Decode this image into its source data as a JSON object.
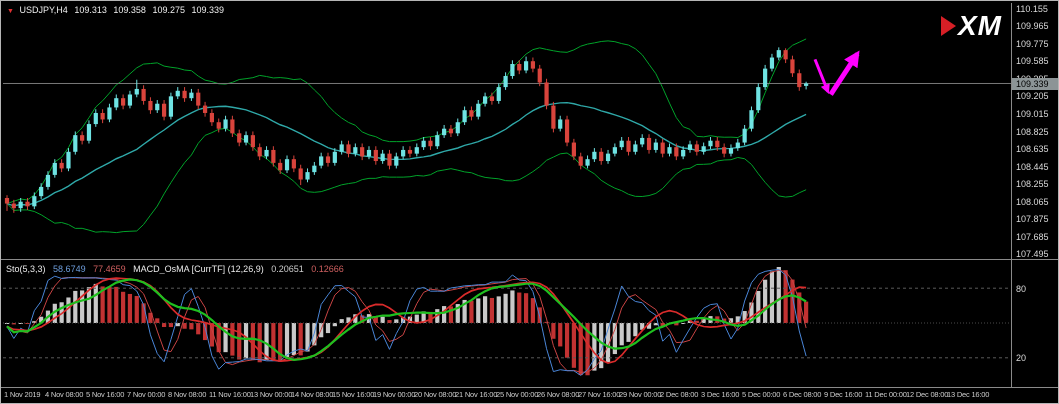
{
  "header": {
    "marker": "▼",
    "symbol": "USDJPY,H4",
    "open": "109.313",
    "high": "109.358",
    "low": "109.275",
    "close": "109.339"
  },
  "logo": {
    "text": "XM"
  },
  "colors": {
    "background": "#000000",
    "bull": "#6FE3E3",
    "bear": "#D9443C",
    "band": "#00A32A",
    "ma": "#2FA8A8",
    "price_line": "#787878",
    "price_tag_bg": "#8C9496",
    "annotation": "#FF00FF",
    "hist_up": "#C9C9C9",
    "hist_down": "#C23232",
    "stoch_k": "#4A86D8",
    "stoch_d": "#C94444",
    "smooth_green": "#1FBF1F",
    "smooth_red": "#D92B2B",
    "level_line": "#5A5A5A",
    "axis_text": "#DCDCDC"
  },
  "main_chart": {
    "current_price": "109.339",
    "price_axis_labels": [
      "110.155",
      "109.965",
      "109.775",
      "109.585",
      "109.395",
      "109.205",
      "109.015",
      "108.825",
      "108.635",
      "108.445",
      "108.255",
      "108.065",
      "107.875",
      "107.685",
      "107.495"
    ]
  },
  "sub_chart": {
    "sto_label": "Sto(5,3,3)",
    "sto_value1": "58.6749",
    "sto_value2": "77.4659",
    "macd_label": "MACD_OsMA [CurrTF] (12,26,9)",
    "macd_value1": "0.20651",
    "macd_value2": "0.12666",
    "axis_labels": [
      "80",
      "20"
    ]
  },
  "time_axis": {
    "labels": [
      "1 Nov 2019",
      "4 Nov 08:00",
      "5 Nov 16:00",
      "7 Nov 00:00",
      "8 Nov 08:00",
      "11 Nov 16:00",
      "13 Nov 00:00",
      "14 Nov 08:00",
      "15 Nov 16:00",
      "19 Nov 00:00",
      "20 Nov 08:00",
      "21 Nov 16:00",
      "25 Nov 00:00",
      "26 Nov 08:00",
      "27 Nov 16:00",
      "29 Nov 00:00",
      "2 Dec 08:00",
      "3 Dec 16:00",
      "5 Dec 00:00",
      "6 Dec 08:00",
      "9 Dec 16:00",
      "11 Dec 00:00",
      "12 Dec 08:00",
      "13 Dec 16:00"
    ]
  },
  "chart_data": {
    "type": "candlestick",
    "symbol": "USDJPY",
    "timeframe": "H4",
    "title": "USDJPY,H4 109.313 109.358 109.275 109.339",
    "ylim": [
      107.44,
      110.21
    ],
    "price_line": 109.339,
    "overlays": [
      {
        "name": "bollinger_bands",
        "period": 20,
        "deviation": 2,
        "color": "#00A32A"
      },
      {
        "name": "sma_middle",
        "period": 20,
        "color": "#2FA8A8"
      }
    ],
    "indicator_panel": {
      "type": "stochastic+macd_osma",
      "stochastic": {
        "k": 5,
        "d": 3,
        "slowing": 3,
        "current_main": 58.6749,
        "current_signal": 77.4659
      },
      "macd_osma": {
        "fast": 12,
        "slow": 26,
        "signal": 9,
        "current_values": [
          0.20651,
          0.12666
        ]
      },
      "scale": [
        0,
        100
      ],
      "levels": [
        80,
        20
      ]
    },
    "annotations": [
      {
        "type": "arrow",
        "direction": "down",
        "color": "#FF00FF",
        "width": 3,
        "from_bar": 118.3,
        "from_price": 109.6,
        "to_bar": 120.2,
        "to_price": 109.25
      },
      {
        "type": "arrow",
        "direction": "up",
        "color": "#FF00FF",
        "width": 5,
        "from_bar": 120.6,
        "from_price": 109.22,
        "to_bar": 124.5,
        "to_price": 109.66
      }
    ],
    "candles": [
      [
        108.1,
        108.13,
        107.96,
        108.04
      ],
      [
        108.04,
        108.08,
        107.94,
        107.99
      ],
      [
        107.99,
        108.1,
        107.95,
        108.06
      ],
      [
        108.06,
        108.1,
        107.97,
        108.01
      ],
      [
        108.01,
        108.16,
        107.98,
        108.12
      ],
      [
        108.12,
        108.26,
        108.09,
        108.22
      ],
      [
        108.22,
        108.39,
        108.19,
        108.35
      ],
      [
        108.35,
        108.52,
        108.32,
        108.48
      ],
      [
        108.48,
        108.52,
        108.38,
        108.42
      ],
      [
        108.42,
        108.64,
        108.39,
        108.6
      ],
      [
        108.6,
        108.82,
        108.57,
        108.78
      ],
      [
        108.78,
        108.82,
        108.68,
        108.72
      ],
      [
        108.72,
        108.94,
        108.69,
        108.9
      ],
      [
        108.9,
        109.06,
        108.87,
        109.02
      ],
      [
        109.02,
        109.06,
        108.91,
        108.95
      ],
      [
        108.95,
        109.12,
        108.92,
        109.08
      ],
      [
        109.08,
        109.22,
        109.05,
        109.18
      ],
      [
        109.18,
        109.22,
        109.06,
        109.1
      ],
      [
        109.1,
        109.26,
        109.07,
        109.22
      ],
      [
        109.22,
        109.38,
        109.19,
        109.28
      ],
      [
        109.28,
        109.32,
        109.11,
        109.15
      ],
      [
        109.15,
        109.19,
        109.01,
        109.05
      ],
      [
        109.05,
        109.16,
        109.02,
        109.12
      ],
      [
        109.12,
        109.16,
        108.94,
        108.98
      ],
      [
        108.98,
        109.24,
        108.95,
        109.2
      ],
      [
        109.2,
        109.3,
        109.17,
        109.26
      ],
      [
        109.26,
        109.3,
        109.14,
        109.18
      ],
      [
        109.18,
        109.28,
        109.15,
        109.24
      ],
      [
        109.24,
        109.28,
        109.06,
        109.1
      ],
      [
        109.1,
        109.14,
        108.98,
        109.02
      ],
      [
        109.02,
        109.06,
        108.88,
        108.92
      ],
      [
        108.92,
        108.96,
        108.81,
        108.85
      ],
      [
        108.85,
        108.99,
        108.82,
        108.95
      ],
      [
        108.95,
        108.99,
        108.76,
        108.8
      ],
      [
        108.8,
        108.84,
        108.66,
        108.7
      ],
      [
        108.7,
        108.82,
        108.67,
        108.78
      ],
      [
        108.78,
        108.82,
        108.61,
        108.65
      ],
      [
        108.65,
        108.69,
        108.51,
        108.55
      ],
      [
        108.55,
        108.66,
        108.52,
        108.62
      ],
      [
        108.62,
        108.66,
        108.44,
        108.48
      ],
      [
        108.48,
        108.52,
        108.36,
        108.4
      ],
      [
        108.4,
        108.56,
        108.37,
        108.52
      ],
      [
        108.52,
        108.56,
        108.38,
        108.42
      ],
      [
        108.42,
        108.46,
        108.24,
        108.3
      ],
      [
        108.3,
        108.42,
        108.27,
        108.38
      ],
      [
        108.38,
        108.49,
        108.35,
        108.45
      ],
      [
        108.45,
        108.59,
        108.42,
        108.55
      ],
      [
        108.55,
        108.59,
        108.44,
        108.48
      ],
      [
        108.48,
        108.64,
        108.45,
        108.6
      ],
      [
        108.6,
        108.72,
        108.57,
        108.68
      ],
      [
        108.68,
        108.72,
        108.54,
        108.58
      ],
      [
        108.58,
        108.69,
        108.55,
        108.65
      ],
      [
        108.65,
        108.69,
        108.51,
        108.55
      ],
      [
        108.55,
        108.66,
        108.52,
        108.62
      ],
      [
        108.62,
        108.66,
        108.46,
        108.5
      ],
      [
        108.5,
        108.62,
        108.47,
        108.58
      ],
      [
        108.58,
        108.62,
        108.41,
        108.45
      ],
      [
        108.45,
        108.59,
        108.42,
        108.55
      ],
      [
        108.55,
        108.66,
        108.52,
        108.62
      ],
      [
        108.62,
        108.66,
        108.54,
        108.58
      ],
      [
        108.58,
        108.69,
        108.55,
        108.65
      ],
      [
        108.65,
        108.76,
        108.62,
        108.72
      ],
      [
        108.72,
        108.76,
        108.62,
        108.66
      ],
      [
        108.66,
        108.82,
        108.63,
        108.78
      ],
      [
        108.78,
        108.89,
        108.75,
        108.85
      ],
      [
        108.85,
        108.89,
        108.76,
        108.8
      ],
      [
        108.8,
        108.96,
        108.77,
        108.92
      ],
      [
        108.92,
        109.09,
        108.89,
        109.05
      ],
      [
        109.05,
        109.09,
        108.94,
        108.98
      ],
      [
        108.98,
        109.16,
        108.95,
        109.12
      ],
      [
        109.12,
        109.24,
        109.09,
        109.2
      ],
      [
        109.2,
        109.24,
        109.11,
        109.15
      ],
      [
        109.15,
        109.34,
        109.12,
        109.3
      ],
      [
        109.3,
        109.46,
        109.27,
        109.42
      ],
      [
        109.42,
        109.59,
        109.39,
        109.55
      ],
      [
        109.55,
        109.59,
        109.44,
        109.48
      ],
      [
        109.48,
        109.63,
        109.45,
        109.58
      ],
      [
        109.58,
        109.62,
        109.46,
        109.5
      ],
      [
        109.5,
        109.54,
        109.31,
        109.35
      ],
      [
        109.35,
        109.39,
        109.06,
        109.1
      ],
      [
        109.1,
        109.14,
        108.81,
        108.85
      ],
      [
        108.85,
        108.99,
        108.82,
        108.95
      ],
      [
        108.95,
        108.99,
        108.66,
        108.7
      ],
      [
        108.7,
        108.74,
        108.51,
        108.55
      ],
      [
        108.55,
        108.59,
        108.41,
        108.45
      ],
      [
        108.45,
        108.56,
        108.42,
        108.52
      ],
      [
        108.52,
        108.64,
        108.49,
        108.6
      ],
      [
        108.6,
        108.64,
        108.46,
        108.5
      ],
      [
        108.5,
        108.62,
        108.47,
        108.58
      ],
      [
        108.58,
        108.69,
        108.55,
        108.65
      ],
      [
        108.65,
        108.76,
        108.62,
        108.72
      ],
      [
        108.72,
        108.76,
        108.56,
        108.6
      ],
      [
        108.6,
        108.72,
        108.57,
        108.68
      ],
      [
        108.68,
        108.79,
        108.65,
        108.75
      ],
      [
        108.75,
        108.79,
        108.58,
        108.62
      ],
      [
        108.62,
        108.74,
        108.59,
        108.7
      ],
      [
        108.7,
        108.74,
        108.54,
        108.58
      ],
      [
        108.58,
        108.69,
        108.55,
        108.65
      ],
      [
        108.65,
        108.69,
        108.51,
        108.55
      ],
      [
        108.55,
        108.66,
        108.52,
        108.62
      ],
      [
        108.62,
        108.72,
        108.59,
        108.68
      ],
      [
        108.68,
        108.72,
        108.56,
        108.6
      ],
      [
        108.6,
        108.7,
        108.57,
        108.66
      ],
      [
        108.66,
        108.76,
        108.63,
        108.72
      ],
      [
        108.72,
        108.76,
        108.61,
        108.65
      ],
      [
        108.65,
        108.69,
        108.54,
        108.58
      ],
      [
        108.58,
        108.68,
        108.55,
        108.64
      ],
      [
        108.64,
        108.74,
        108.61,
        108.7
      ],
      [
        108.7,
        108.89,
        108.67,
        108.85
      ],
      [
        108.85,
        109.09,
        108.82,
        109.05
      ],
      [
        109.05,
        109.34,
        109.02,
        109.3
      ],
      [
        109.3,
        109.54,
        109.27,
        109.5
      ],
      [
        109.5,
        109.66,
        109.47,
        109.62
      ],
      [
        109.62,
        109.73,
        109.59,
        109.7
      ],
      [
        109.7,
        109.72,
        109.56,
        109.6
      ],
      [
        109.6,
        109.64,
        109.41,
        109.45
      ],
      [
        109.45,
        109.49,
        109.26,
        109.3
      ],
      [
        109.313,
        109.358,
        109.275,
        109.339
      ]
    ]
  }
}
